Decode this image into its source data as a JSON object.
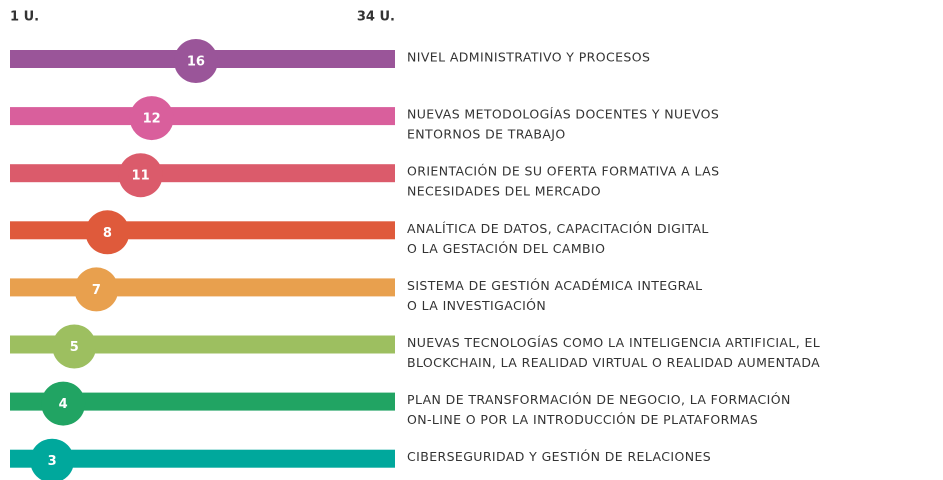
{
  "chart_data": {
    "type": "dot",
    "xlim": [
      1,
      34
    ],
    "xticks": [
      {
        "value": 1,
        "label": "1 U."
      },
      {
        "value": 34,
        "label": "34 U."
      }
    ],
    "categories": [
      [
        "NIVEL ADMINISTRATIVO Y PROCESOS"
      ],
      [
        "NUEVAS METODOLOGÍAS DOCENTES Y NUEVOS",
        "ENTORNOS DE TRABAJO"
      ],
      [
        "ORIENTACIÓN DE SU OFERTA FORMATIVA A LAS",
        "NECESIDADES DEL MERCADO"
      ],
      [
        "ANALÍTICA DE DATOS, CAPACITACIÓN DIGITAL",
        "O LA GESTACIÓN DEL CAMBIO"
      ],
      [
        "SISTEMA DE GESTIÓN ACADÉMICA INTEGRAL",
        "O LA INVESTIGACIÓN"
      ],
      [
        "NUEVAS TECNOLOGÍAS COMO LA INTELIGENCIA ARTIFICIAL, EL",
        "BLOCKCHAIN, LA REALIDAD VIRTUAL O REALIDAD AUMENTADA"
      ],
      [
        "PLAN DE TRANSFORMACIÓN DE NEGOCIO, LA FORMACIÓN",
        "ON-LINE O POR LA INTRODUCCIÓN DE PLATAFORMAS"
      ],
      [
        "CIBERSEGURIDAD Y GESTIÓN DE RELACIONES"
      ]
    ],
    "values": [
      16,
      12,
      11,
      8,
      7,
      5,
      4,
      3
    ],
    "colors": [
      "#9a5599",
      "#d95f9c",
      "#db5b6b",
      "#df5a3b",
      "#e8a04e",
      "#9dbf60",
      "#21a463",
      "#00a89c"
    ]
  }
}
